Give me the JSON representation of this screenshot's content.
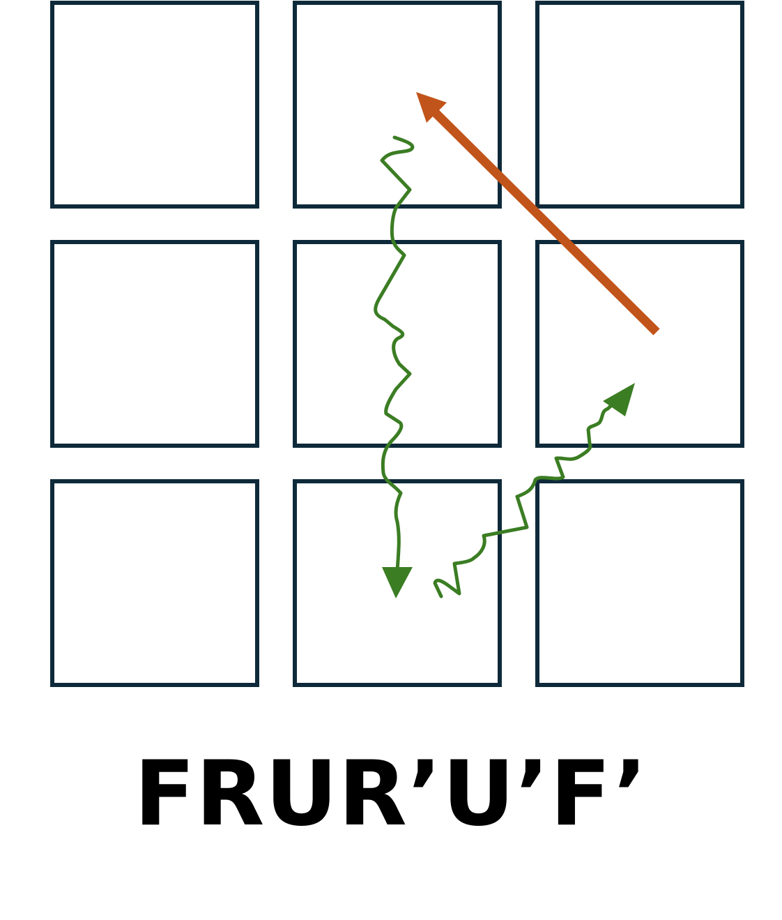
{
  "algorithm": {
    "notation": "FRUR’U’F’"
  },
  "grid": {
    "rows": 3,
    "cols": 3,
    "cell_color": "#ffffff",
    "border_color": "#0e2a3a"
  },
  "arrows": [
    {
      "name": "orange-straight-arrow",
      "style": "straight",
      "color": "#c1541a",
      "from_cell": "middle-right",
      "to_cell": "top-middle"
    },
    {
      "name": "green-wavy-arrow-down",
      "style": "wavy",
      "color": "#3b7d23",
      "from_cell": "top-middle",
      "to_cell": "bottom-middle"
    },
    {
      "name": "green-wavy-arrow-up-right",
      "style": "wavy",
      "color": "#3b7d23",
      "from_cell": "bottom-middle",
      "to_cell": "middle-right"
    }
  ]
}
